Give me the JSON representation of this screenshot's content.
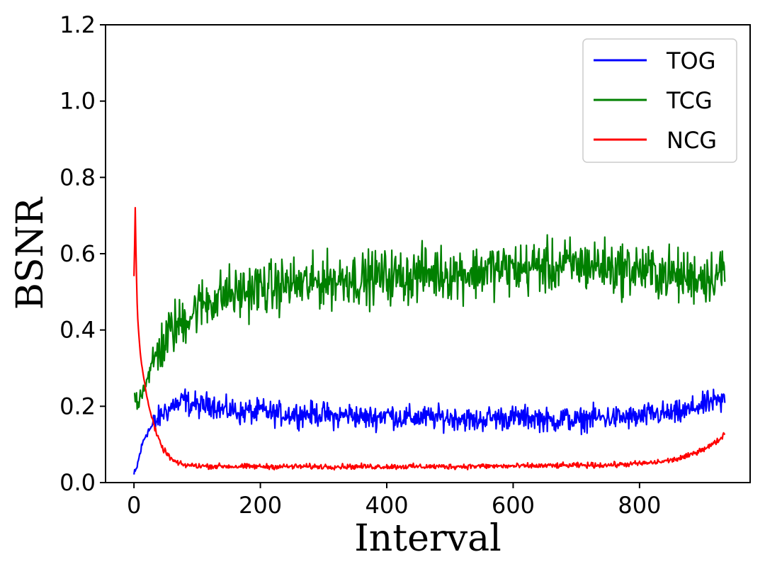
{
  "chart_data": {
    "type": "line",
    "title": "",
    "xlabel": "Interval",
    "ylabel": "BSNR",
    "xlim": [
      -45,
      975
    ],
    "ylim": [
      0.0,
      1.2
    ],
    "xticks": [
      0,
      200,
      400,
      600,
      800
    ],
    "xtick_labels": [
      "0",
      "200",
      "400",
      "600",
      "800"
    ],
    "yticks": [
      0.0,
      0.2,
      0.4,
      0.6,
      0.8,
      1.0,
      1.2
    ],
    "ytick_labels": [
      "0.0",
      "0.2",
      "0.4",
      "0.6",
      "0.8",
      "1.0",
      "1.2"
    ],
    "grid": false,
    "legend_position": "top-right",
    "series": [
      {
        "name": "TOG",
        "color": "#0000ff",
        "x": [
          0,
          3,
          6,
          10,
          15,
          20,
          25,
          30,
          35,
          40,
          45,
          50,
          55,
          60,
          65,
          70,
          75,
          80,
          85,
          90,
          95,
          100,
          110,
          120,
          130,
          140,
          150,
          160,
          170,
          180,
          190,
          200,
          220,
          240,
          260,
          280,
          300,
          320,
          340,
          360,
          380,
          400,
          420,
          440,
          460,
          480,
          500,
          520,
          540,
          560,
          580,
          600,
          620,
          640,
          660,
          680,
          700,
          720,
          740,
          760,
          780,
          800,
          820,
          840,
          860,
          880,
          890,
          900,
          910,
          920,
          930,
          935
        ],
        "y": [
          0.02,
          0.03,
          0.05,
          0.08,
          0.11,
          0.13,
          0.14,
          0.15,
          0.16,
          0.17,
          0.18,
          0.19,
          0.19,
          0.2,
          0.21,
          0.2,
          0.21,
          0.22,
          0.21,
          0.2,
          0.21,
          0.2,
          0.2,
          0.21,
          0.2,
          0.19,
          0.19,
          0.19,
          0.18,
          0.19,
          0.18,
          0.19,
          0.18,
          0.18,
          0.18,
          0.18,
          0.18,
          0.17,
          0.18,
          0.17,
          0.17,
          0.18,
          0.17,
          0.17,
          0.17,
          0.17,
          0.17,
          0.17,
          0.16,
          0.17,
          0.17,
          0.17,
          0.17,
          0.17,
          0.16,
          0.17,
          0.16,
          0.17,
          0.17,
          0.17,
          0.17,
          0.17,
          0.18,
          0.18,
          0.18,
          0.19,
          0.2,
          0.2,
          0.21,
          0.21,
          0.21,
          0.22
        ],
        "noise": 0.045
      },
      {
        "name": "TCG",
        "color": "#008000",
        "x": [
          0,
          3,
          6,
          10,
          15,
          20,
          25,
          30,
          35,
          40,
          45,
          50,
          55,
          60,
          65,
          70,
          75,
          80,
          85,
          90,
          95,
          100,
          110,
          120,
          130,
          140,
          150,
          160,
          170,
          180,
          190,
          200,
          220,
          240,
          260,
          280,
          300,
          320,
          340,
          360,
          380,
          400,
          420,
          440,
          460,
          480,
          500,
          520,
          540,
          560,
          580,
          600,
          620,
          640,
          660,
          680,
          700,
          720,
          740,
          760,
          780,
          800,
          820,
          840,
          860,
          880,
          890,
          900,
          910,
          920,
          930,
          935
        ],
        "y": [
          0.23,
          0.22,
          0.21,
          0.23,
          0.25,
          0.27,
          0.29,
          0.31,
          0.33,
          0.35,
          0.36,
          0.37,
          0.39,
          0.4,
          0.41,
          0.41,
          0.42,
          0.43,
          0.44,
          0.44,
          0.45,
          0.46,
          0.47,
          0.48,
          0.48,
          0.49,
          0.5,
          0.49,
          0.5,
          0.5,
          0.51,
          0.51,
          0.51,
          0.52,
          0.52,
          0.52,
          0.53,
          0.53,
          0.54,
          0.53,
          0.54,
          0.54,
          0.54,
          0.54,
          0.55,
          0.55,
          0.55,
          0.55,
          0.55,
          0.56,
          0.56,
          0.56,
          0.56,
          0.57,
          0.56,
          0.57,
          0.57,
          0.57,
          0.57,
          0.56,
          0.56,
          0.56,
          0.55,
          0.55,
          0.54,
          0.54,
          0.54,
          0.54,
          0.54,
          0.55,
          0.55,
          0.56
        ],
        "noise": 0.1
      },
      {
        "name": "NCG",
        "color": "#ff0000",
        "x": [
          0,
          1,
          2,
          3,
          4,
          5,
          6,
          8,
          10,
          12,
          15,
          18,
          20,
          25,
          30,
          35,
          40,
          45,
          50,
          55,
          60,
          65,
          70,
          75,
          80,
          90,
          100,
          120,
          140,
          160,
          200,
          250,
          300,
          350,
          400,
          450,
          500,
          550,
          600,
          650,
          700,
          750,
          780,
          800,
          820,
          840,
          860,
          870,
          880,
          890,
          900,
          910,
          920,
          930,
          935
        ],
        "y": [
          0.54,
          0.62,
          0.72,
          0.62,
          0.54,
          0.47,
          0.43,
          0.38,
          0.34,
          0.31,
          0.28,
          0.25,
          0.23,
          0.19,
          0.16,
          0.13,
          0.11,
          0.09,
          0.08,
          0.07,
          0.06,
          0.055,
          0.05,
          0.048,
          0.046,
          0.045,
          0.044,
          0.043,
          0.043,
          0.042,
          0.042,
          0.042,
          0.042,
          0.042,
          0.042,
          0.042,
          0.042,
          0.043,
          0.043,
          0.044,
          0.045,
          0.046,
          0.048,
          0.05,
          0.052,
          0.056,
          0.062,
          0.066,
          0.072,
          0.08,
          0.088,
          0.095,
          0.105,
          0.118,
          0.13
        ],
        "noise": 0.01
      }
    ]
  }
}
